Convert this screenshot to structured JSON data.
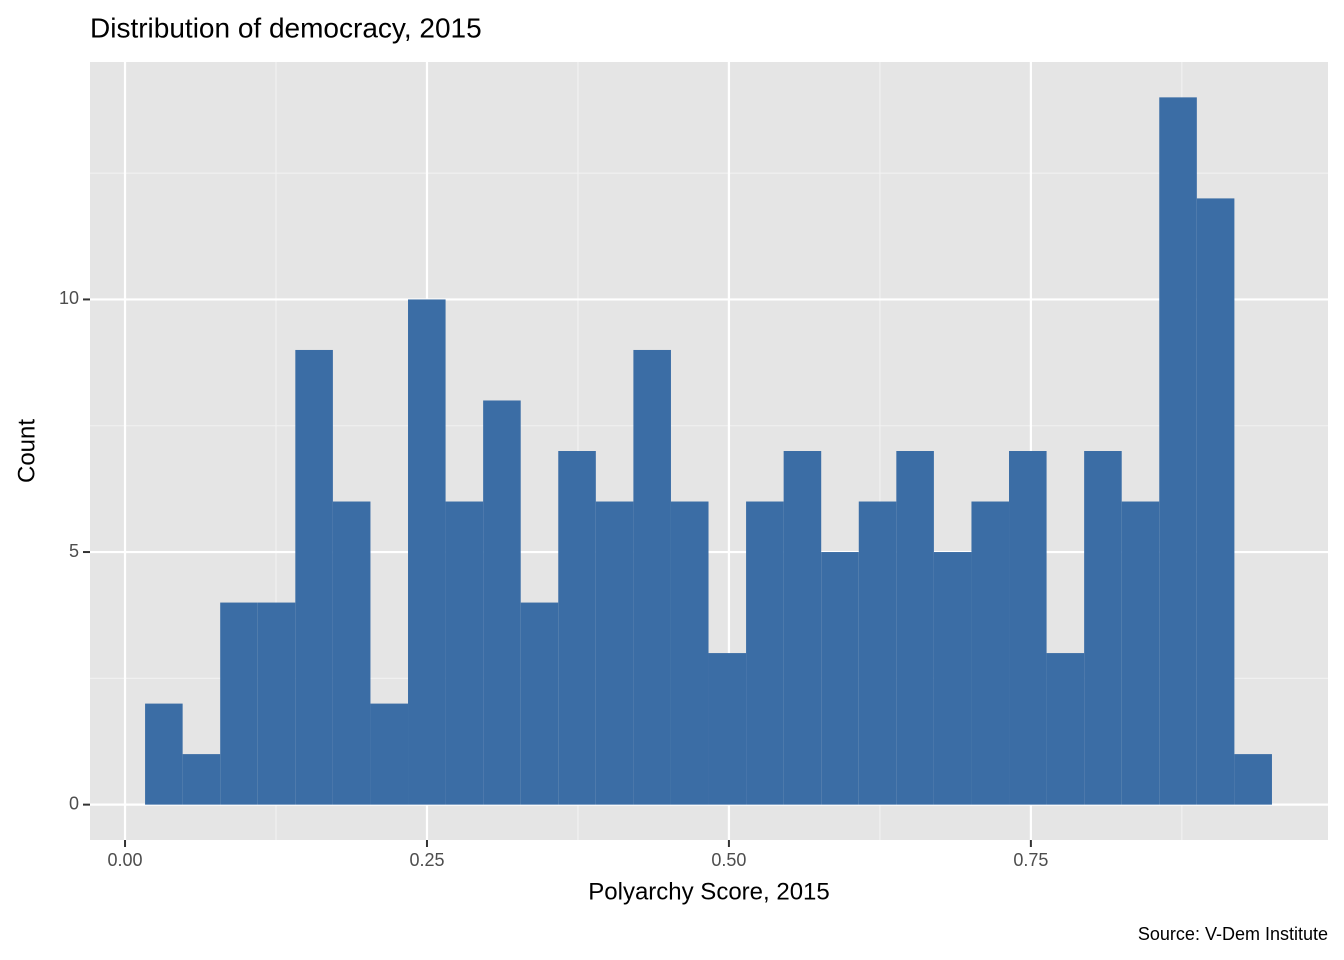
{
  "chart_data": {
    "type": "histogram",
    "title": "Distribution of democracy, 2015",
    "x_label": "Polyarchy Score, 2015",
    "y_label": "Count",
    "caption": "Source: V-Dem Institute",
    "bins": [
      0.0166,
      0.0477,
      0.0788,
      0.1099,
      0.141,
      0.1721,
      0.2032,
      0.2343,
      0.2654,
      0.2965,
      0.3276,
      0.3587,
      0.3898,
      0.4209,
      0.452,
      0.4831,
      0.5142,
      0.5453,
      0.5764,
      0.6075,
      0.6386,
      0.6697,
      0.7008,
      0.7319,
      0.763,
      0.7941,
      0.8252,
      0.8563,
      0.8874,
      0.9185,
      0.9496
    ],
    "values": [
      2,
      1,
      4,
      4,
      9,
      6,
      2,
      10,
      6,
      8,
      4,
      7,
      6,
      9,
      6,
      3,
      6,
      7,
      5,
      6,
      7,
      5,
      6,
      7,
      3,
      7,
      6,
      14,
      12,
      1
    ],
    "color": "#3b6da5",
    "xlim": [
      -0.029,
      0.996
    ],
    "ylim": [
      -0.7,
      14.7
    ],
    "xticks": [
      {
        "value": 0,
        "label": "0.00"
      },
      {
        "value": 0.25,
        "label": "0.25"
      },
      {
        "value": 0.5,
        "label": "0.50"
      },
      {
        "value": 0.75,
        "label": "0.75"
      }
    ],
    "yticks": [
      0,
      5,
      10
    ],
    "grid": true
  }
}
